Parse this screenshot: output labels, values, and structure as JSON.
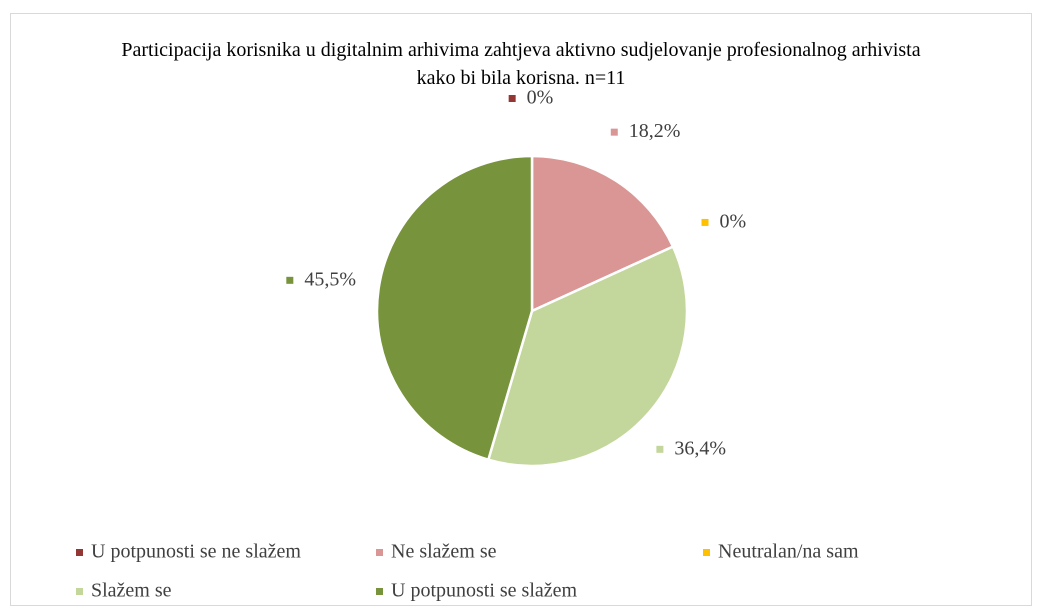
{
  "chart_data": {
    "type": "pie",
    "title": "Participacija korisnika u digitalnim arhivima zahtjeva aktivno sudjelovanje profesionalnog arhivista kako bi bila korisna. n=11",
    "categories": [
      "U potpunosti se ne slažem",
      "Ne slažem se",
      "Neutralan/na sam",
      "Slažem se",
      "U potpunosti se slažem"
    ],
    "values": [
      0,
      18.2,
      0,
      36.4,
      45.5
    ],
    "value_labels": [
      "0%",
      "18,2%",
      "0%",
      "36,4%",
      "45,5%"
    ],
    "colors": [
      "#943634",
      "#d99694",
      "#ffc000",
      "#c3d69b",
      "#77933c"
    ],
    "legend": "bottom"
  }
}
